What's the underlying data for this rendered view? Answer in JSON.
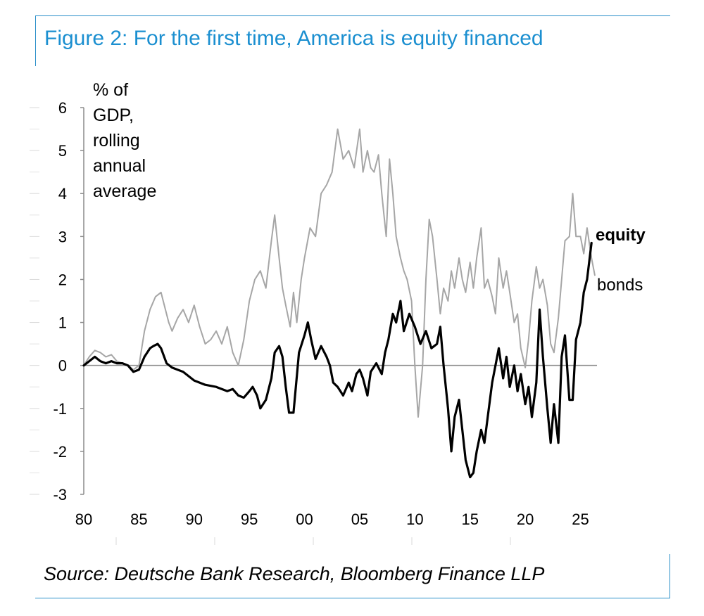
{
  "header": {
    "title": "Figure 2: For the first time, America is equity financed"
  },
  "footer": {
    "source": "Source: Deutsche Bank Research, Bloomberg Finance LLP"
  },
  "chart_data": {
    "type": "line",
    "ylabel_lines": [
      "% of",
      "GDP,",
      "rolling",
      "annual",
      "average"
    ],
    "xlabel": "",
    "x_tick_labels": [
      "80",
      "85",
      "90",
      "95",
      "00",
      "05",
      "10",
      "15",
      "20",
      "25"
    ],
    "x_tick_years": [
      1980,
      1985,
      1990,
      1995,
      2000,
      2005,
      2010,
      2015,
      2020,
      2025
    ],
    "y_tick_labels": [
      "6",
      "5",
      "4",
      "3",
      "2",
      "1",
      "0",
      "-1",
      "-2",
      "-3"
    ],
    "y_tick_values": [
      6,
      5,
      4,
      3,
      2,
      1,
      0,
      -1,
      -2,
      -3
    ],
    "ylim": [
      -3,
      6
    ],
    "xlim": [
      1980,
      2026.5
    ],
    "zero_line": true,
    "grid": false,
    "legend": "direct labels at series ends",
    "colors": {
      "equity": "#000000",
      "bonds": "#a6a6a6"
    },
    "series": [
      {
        "name": "equity",
        "label_style": "bold",
        "x": [
          1980.0,
          1980.5,
          1981.0,
          1981.5,
          1982.0,
          1982.5,
          1983.0,
          1983.5,
          1984.0,
          1984.5,
          1985.0,
          1985.5,
          1986.0,
          1986.3,
          1986.7,
          1987.0,
          1987.5,
          1988.0,
          1989.0,
          1990.0,
          1991.0,
          1992.0,
          1993.0,
          1993.5,
          1994.0,
          1994.5,
          1995.0,
          1995.3,
          1995.7,
          1996.0,
          1996.5,
          1997.0,
          1997.3,
          1997.7,
          1998.0,
          1998.3,
          1998.6,
          1999.0,
          1999.5,
          2000.0,
          2000.3,
          2000.6,
          2001.0,
          2001.5,
          2002.0,
          2002.3,
          2002.6,
          2003.0,
          2003.5,
          2004.0,
          2004.3,
          2004.7,
          2005.0,
          2005.3,
          2005.7,
          2006.0,
          2006.5,
          2007.0,
          2007.3,
          2007.6,
          2008.0,
          2008.3,
          2008.7,
          2009.0,
          2009.5,
          2010.0,
          2010.5,
          2011.0,
          2011.5,
          2012.0,
          2012.3,
          2012.6,
          2013.0,
          2013.3,
          2013.6,
          2014.0,
          2014.3,
          2014.6,
          2015.0,
          2015.3,
          2015.6,
          2016.0,
          2016.3,
          2016.6,
          2017.0,
          2017.3,
          2017.6,
          2018.0,
          2018.3,
          2018.6,
          2019.0,
          2019.3,
          2019.6,
          2020.0,
          2020.3,
          2020.6,
          2021.0,
          2021.3,
          2021.6,
          2022.0,
          2022.3,
          2022.6,
          2023.0,
          2023.3,
          2023.6,
          2024.0,
          2024.3,
          2024.6,
          2025.0,
          2025.3,
          2025.6,
          2026.0
        ],
        "y": [
          0.0,
          0.1,
          0.2,
          0.1,
          0.05,
          0.1,
          0.05,
          0.05,
          0.0,
          -0.15,
          -0.1,
          0.2,
          0.4,
          0.45,
          0.5,
          0.4,
          0.05,
          -0.05,
          -0.15,
          -0.35,
          -0.45,
          -0.5,
          -0.6,
          -0.55,
          -0.7,
          -0.75,
          -0.6,
          -0.5,
          -0.7,
          -1.0,
          -0.8,
          -0.3,
          0.3,
          0.45,
          0.2,
          -0.5,
          -1.1,
          -1.1,
          0.3,
          0.7,
          1.0,
          0.6,
          0.15,
          0.45,
          0.2,
          0.0,
          -0.4,
          -0.5,
          -0.7,
          -0.4,
          -0.6,
          -0.2,
          -0.1,
          -0.3,
          -0.7,
          -0.15,
          0.05,
          -0.2,
          0.3,
          0.6,
          1.2,
          1.0,
          1.5,
          0.8,
          1.2,
          0.9,
          0.5,
          0.8,
          0.4,
          0.5,
          0.9,
          0.0,
          -1.0,
          -2.0,
          -1.2,
          -0.8,
          -1.5,
          -2.2,
          -2.6,
          -2.5,
          -2.0,
          -1.5,
          -1.8,
          -1.2,
          -0.4,
          0.0,
          0.4,
          -0.3,
          0.2,
          -0.5,
          0.0,
          -0.6,
          -0.2,
          -0.9,
          -0.5,
          -1.2,
          -0.4,
          1.3,
          0.2,
          -1.0,
          -1.8,
          -0.9,
          -1.8,
          0.2,
          0.7,
          -0.8,
          -0.8,
          0.6,
          1.0,
          1.7,
          2.0,
          2.85
        ]
      },
      {
        "name": "bonds",
        "label_style": "normal",
        "x": [
          1980.0,
          1980.5,
          1981.0,
          1981.5,
          1982.0,
          1982.5,
          1983.0,
          1983.5,
          1984.0,
          1984.5,
          1985.0,
          1985.5,
          1986.0,
          1986.5,
          1987.0,
          1987.3,
          1987.7,
          1988.0,
          1988.5,
          1989.0,
          1989.5,
          1990.0,
          1990.5,
          1991.0,
          1991.5,
          1992.0,
          1992.5,
          1993.0,
          1993.5,
          1994.0,
          1994.5,
          1995.0,
          1995.5,
          1996.0,
          1996.5,
          1997.0,
          1997.3,
          1997.7,
          1998.0,
          1998.3,
          1998.7,
          1999.0,
          1999.3,
          1999.7,
          2000.0,
          2000.5,
          2001.0,
          2001.5,
          2002.0,
          2002.5,
          2003.0,
          2003.5,
          2004.0,
          2004.5,
          2005.0,
          2005.3,
          2005.7,
          2006.0,
          2006.3,
          2006.7,
          2007.0,
          2007.2,
          2007.4,
          2007.7,
          2008.0,
          2008.3,
          2008.7,
          2009.0,
          2009.3,
          2009.7,
          2010.0,
          2010.3,
          2010.7,
          2011.0,
          2011.3,
          2011.6,
          2012.0,
          2012.3,
          2012.6,
          2013.0,
          2013.3,
          2013.6,
          2014.0,
          2014.3,
          2014.6,
          2015.0,
          2015.3,
          2015.6,
          2016.0,
          2016.3,
          2016.6,
          2017.0,
          2017.3,
          2017.6,
          2018.0,
          2018.3,
          2018.6,
          2019.0,
          2019.3,
          2019.6,
          2020.0,
          2020.3,
          2020.6,
          2021.0,
          2021.3,
          2021.6,
          2022.0,
          2022.3,
          2022.6,
          2023.0,
          2023.3,
          2023.6,
          2024.0,
          2024.3,
          2024.6,
          2025.0,
          2025.3,
          2025.6,
          2026.0,
          2026.3
        ],
        "y": [
          0.0,
          0.2,
          0.35,
          0.3,
          0.2,
          0.25,
          0.1,
          0.05,
          0.0,
          -0.1,
          0.0,
          0.8,
          1.3,
          1.6,
          1.7,
          1.4,
          1.0,
          0.8,
          1.1,
          1.3,
          1.0,
          1.4,
          0.9,
          0.5,
          0.6,
          0.8,
          0.5,
          0.9,
          0.3,
          0.0,
          0.6,
          1.5,
          2.0,
          2.2,
          1.8,
          2.9,
          3.5,
          2.5,
          1.8,
          1.4,
          0.9,
          1.7,
          1.0,
          2.0,
          2.5,
          3.2,
          3.0,
          4.0,
          4.2,
          4.5,
          5.5,
          4.8,
          5.0,
          4.6,
          5.5,
          4.5,
          5.0,
          4.6,
          4.5,
          4.9,
          4.0,
          3.5,
          3.0,
          4.8,
          4.0,
          3.0,
          2.5,
          2.2,
          2.0,
          1.5,
          0.0,
          -1.2,
          0.0,
          2.0,
          3.4,
          3.0,
          2.0,
          1.2,
          1.8,
          1.5,
          2.2,
          1.8,
          2.5,
          2.0,
          1.7,
          2.4,
          1.8,
          2.5,
          3.2,
          1.8,
          2.0,
          1.6,
          1.2,
          2.5,
          1.8,
          2.2,
          1.7,
          1.0,
          1.2,
          0.4,
          -0.05,
          0.6,
          1.5,
          2.3,
          1.8,
          2.0,
          1.4,
          0.5,
          0.3,
          1.1,
          2.0,
          2.9,
          3.0,
          4.0,
          3.0,
          3.0,
          2.6,
          3.2,
          2.5,
          2.1
        ]
      }
    ]
  }
}
